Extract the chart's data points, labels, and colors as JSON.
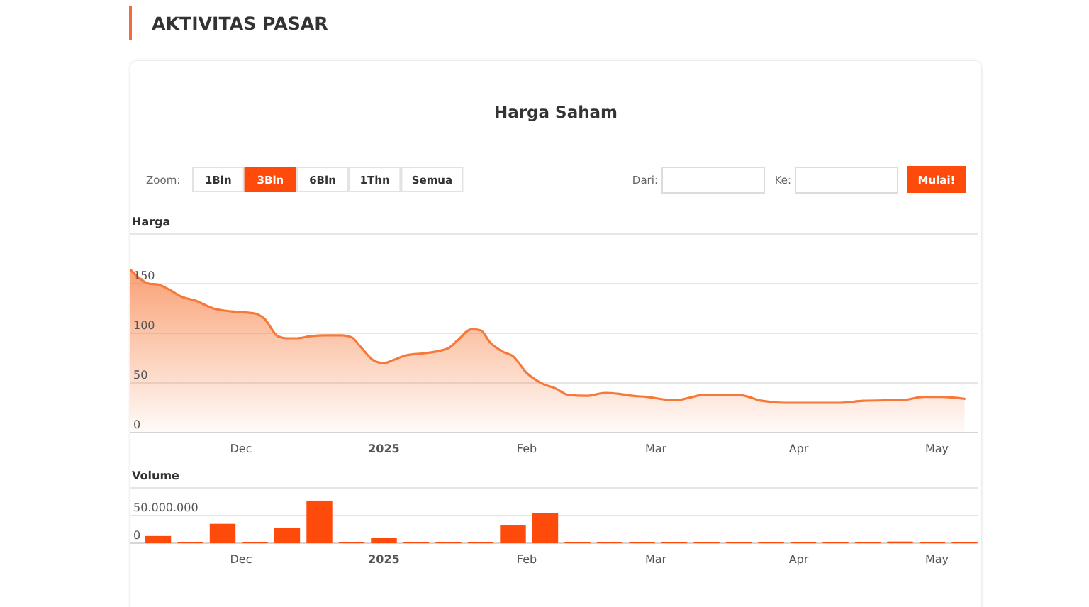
{
  "chart_data": [
    {
      "type": "area",
      "title": "AKTIVITAS PASAR",
      "subtitle": "Harga Saham",
      "ylabel": "Harga",
      "annotations": [
        "Zoom:",
        "1Bln",
        "3Bln",
        "6Bln",
        "1Thn",
        "Semua",
        "Dari:",
        "Ke:",
        "Mulai!"
      ],
      "x": [
        "2024-11-07",
        "2024-11-11",
        "2024-11-13",
        "2024-11-15",
        "2024-11-18",
        "2024-11-21",
        "2024-11-25",
        "2024-11-29",
        "2024-12-04",
        "2024-12-06",
        "2024-12-09",
        "2024-12-11",
        "2024-12-13",
        "2024-12-16",
        "2024-12-19",
        "2024-12-23",
        "2024-12-25",
        "2024-12-27",
        "2024-12-30",
        "2025-01-01",
        "2025-01-03",
        "2025-01-06",
        "2025-01-10",
        "2025-01-15",
        "2025-01-17",
        "2025-01-20",
        "2025-01-22",
        "2025-01-24",
        "2025-01-27",
        "2025-01-29",
        "2025-02-01",
        "2025-02-03",
        "2025-02-05",
        "2025-02-07",
        "2025-02-10",
        "2025-02-14",
        "2025-02-18",
        "2025-02-21",
        "2025-02-24",
        "2025-02-27",
        "2025-03-04",
        "2025-03-06",
        "2025-03-09",
        "2025-03-11",
        "2025-03-19",
        "2025-03-24",
        "2025-03-29",
        "2025-04-10",
        "2025-04-15",
        "2025-04-24",
        "2025-04-28",
        "2025-05-02",
        "2025-05-07"
      ],
      "values": [
        164,
        150,
        149,
        145,
        137,
        133,
        125,
        122,
        120,
        115,
        97,
        95,
        95,
        97,
        98,
        98,
        96,
        86,
        72,
        70,
        73,
        78,
        80,
        85,
        93,
        104,
        103,
        91,
        81,
        77,
        60,
        53,
        48,
        45,
        38,
        37,
        40,
        39,
        37,
        36,
        33,
        33,
        36,
        38,
        38,
        32,
        30,
        30,
        32,
        33,
        36,
        36,
        34
      ],
      "color": "#f7793a",
      "xlim": [
        "2024-11-07",
        "2025-05-10"
      ],
      "xticks": [
        {
          "value": "2024-12-01",
          "label": "Dec"
        },
        {
          "value": "2025-01-01",
          "label": "2025"
        },
        {
          "value": "2025-02-01",
          "label": "Feb"
        },
        {
          "value": "2025-03-01",
          "label": "Mar"
        },
        {
          "value": "2025-04-01",
          "label": "Apr"
        },
        {
          "value": "2025-05-01",
          "label": "May"
        }
      ],
      "ylim": [
        0,
        200
      ],
      "yticks": [
        0,
        50,
        100,
        150,
        {
          "value": 200,
          "label": null
        }
      ],
      "grid": "y"
    },
    {
      "type": "bar",
      "ylabel": "Volume",
      "x": [
        "2024-11-13",
        "2024-11-20",
        "2024-11-27",
        "2024-12-04",
        "2024-12-11",
        "2024-12-18",
        "2024-12-25",
        "2025-01-01",
        "2025-01-08",
        "2025-01-15",
        "2025-01-22",
        "2025-01-29",
        "2025-02-05",
        "2025-02-12",
        "2025-02-19",
        "2025-02-26",
        "2025-03-05",
        "2025-03-12",
        "2025-03-19",
        "2025-03-26",
        "2025-04-02",
        "2025-04-09",
        "2025-04-16",
        "2025-04-23",
        "2025-04-30",
        "2025-05-07"
      ],
      "values": [
        13000000,
        2000000,
        35000000,
        2000000,
        27000000,
        77000000,
        2000000,
        10000000,
        2000000,
        2000000,
        2000000,
        32000000,
        54000000,
        2000000,
        2000000,
        2000000,
        2000000,
        2000000,
        2000000,
        2000000,
        2000000,
        2000000,
        2000000,
        3000000,
        2000000,
        2000000
      ],
      "color": "#fe4a0a",
      "xlim": [
        "2024-11-07",
        "2025-05-10"
      ],
      "xticks": [
        {
          "value": "2024-12-01",
          "label": "Dec"
        },
        {
          "value": "2025-01-01",
          "label": "2025"
        },
        {
          "value": "2025-02-01",
          "label": "Feb"
        },
        {
          "value": "2025-03-01",
          "label": "Mar"
        },
        {
          "value": "2025-04-01",
          "label": "Apr"
        },
        {
          "value": "2025-05-01",
          "label": "May"
        }
      ],
      "ylim": [
        0,
        100000000
      ],
      "yticks": [
        0,
        {
          "value": 50000000,
          "label": "50.000.000"
        },
        {
          "value": 100000000,
          "label": null
        }
      ],
      "grid": "y"
    }
  ]
}
